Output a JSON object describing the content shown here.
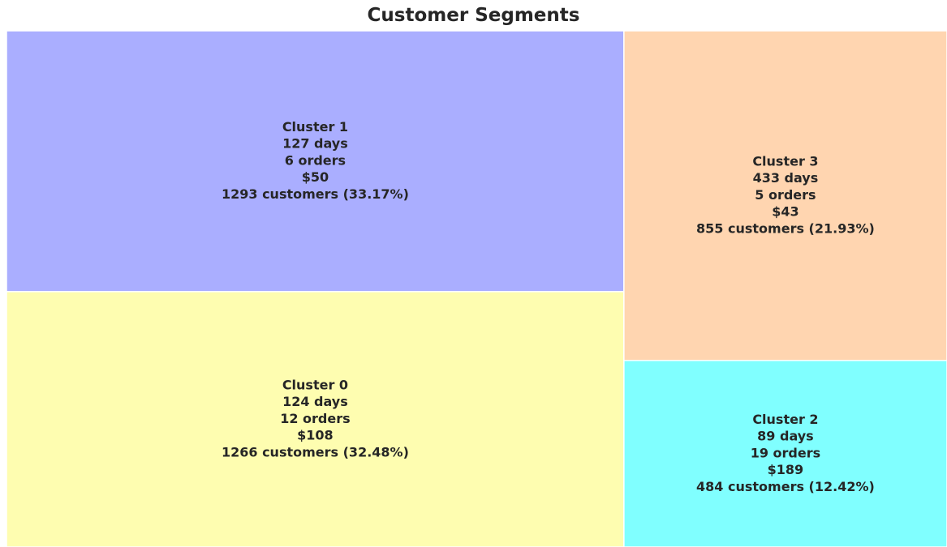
{
  "chart_data": {
    "type": "treemap",
    "title": "Customer Segments",
    "cells": [
      {
        "name": "Cluster 1",
        "recency": "127 days",
        "frequency": "6 orders",
        "monetary": "$50",
        "customers": "1293 customers (33.17%)",
        "count": 1293,
        "percent": 33.17,
        "color": "#aaaeff"
      },
      {
        "name": "Cluster 0",
        "recency": "124 days",
        "frequency": "12 orders",
        "monetary": "$108",
        "customers": "1266 customers (32.48%)",
        "count": 1266,
        "percent": 32.48,
        "color": "#fefdb0"
      },
      {
        "name": "Cluster 3",
        "recency": "433 days",
        "frequency": "5 orders",
        "monetary": "$43",
        "customers": "855 customers (21.93%)",
        "count": 855,
        "percent": 21.93,
        "color": "#ffd5b0"
      },
      {
        "name": "Cluster 2",
        "recency": "89 days",
        "frequency": "19 orders",
        "monetary": "$189",
        "customers": "484 customers (12.42%)",
        "count": 484,
        "percent": 12.42,
        "color": "#80ffff"
      }
    ]
  }
}
